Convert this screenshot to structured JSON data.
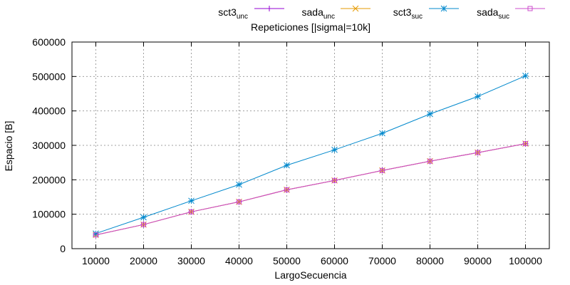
{
  "chart_data": {
    "type": "line",
    "title": "Repeticiones [|sigma|=10k]",
    "xlabel": "LargoSecuencia",
    "ylabel": "Espacio [B]",
    "xlim": [
      5000,
      105000
    ],
    "ylim": [
      0,
      600000
    ],
    "x_ticks": [
      10000,
      20000,
      30000,
      40000,
      50000,
      60000,
      70000,
      80000,
      90000,
      100000
    ],
    "y_ticks": [
      0,
      100000,
      200000,
      300000,
      400000,
      500000,
      600000
    ],
    "grid": true,
    "legend_position": "top-right",
    "x": [
      10000,
      20000,
      30000,
      40000,
      50000,
      60000,
      70000,
      80000,
      90000,
      100000
    ],
    "series": [
      {
        "name": "sct3",
        "sub": "unc",
        "color": "#9400d3",
        "marker": "plus",
        "values": [
          40000,
          70000,
          107000,
          136000,
          171000,
          198000,
          227000,
          254000,
          279000,
          305000
        ]
      },
      {
        "name": "sada",
        "sub": "unc",
        "color": "#e69a00",
        "marker": "cross",
        "values": [
          40000,
          70000,
          107000,
          136000,
          171000,
          198000,
          227000,
          254000,
          279000,
          305000
        ]
      },
      {
        "name": "sct3",
        "sub": "suc",
        "color": "#0088cc",
        "marker": "star",
        "values": [
          44000,
          91000,
          139000,
          186000,
          242000,
          287000,
          335000,
          391000,
          442000,
          502000
        ]
      },
      {
        "name": "sada",
        "sub": "suc",
        "color": "#cc4dcc",
        "marker": "box",
        "values": [
          40000,
          70000,
          107000,
          136000,
          171000,
          198000,
          227000,
          254000,
          279000,
          305000
        ]
      }
    ]
  }
}
